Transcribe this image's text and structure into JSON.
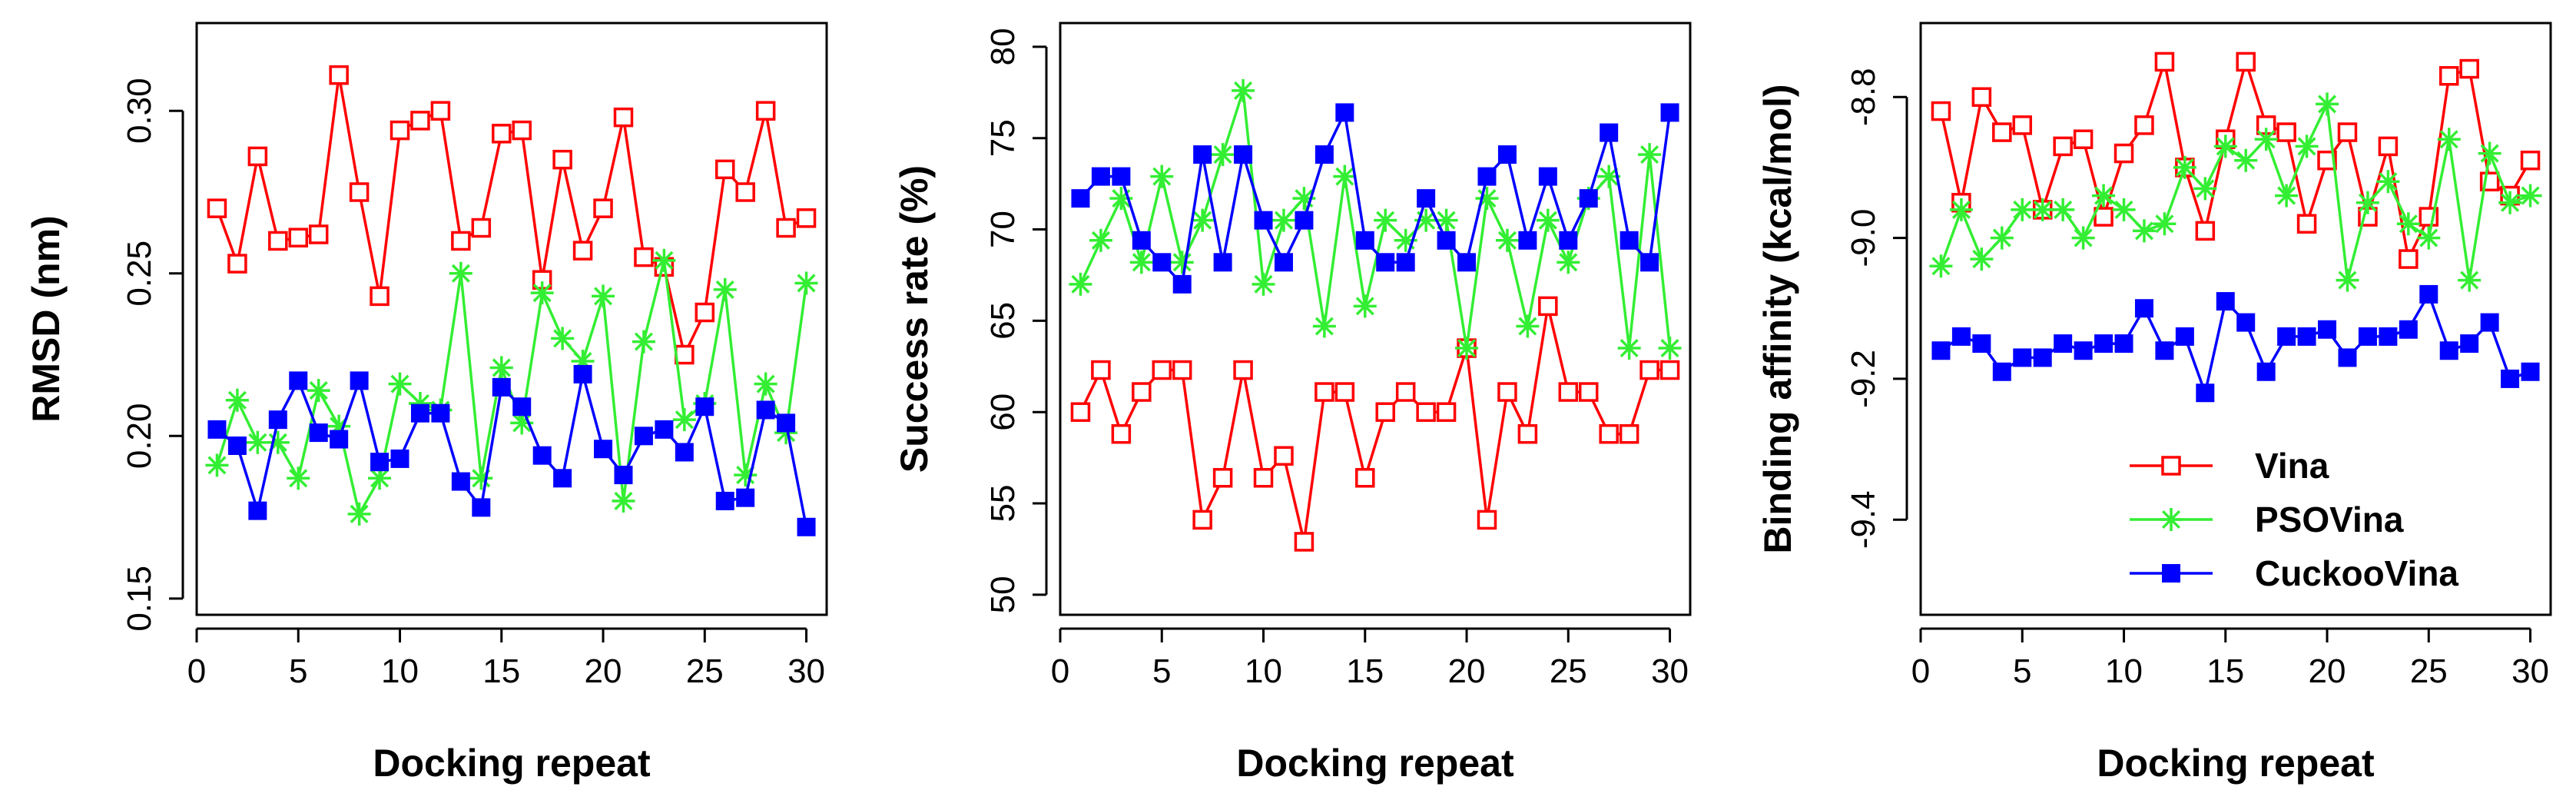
{
  "chart_data": [
    {
      "type": "line",
      "title": "",
      "xlabel": "Docking repeat",
      "ylabel": "RMSD (nm)",
      "xlim": [
        0,
        31
      ],
      "ylim": [
        0.145,
        0.327
      ],
      "xticks": [
        0,
        5,
        10,
        15,
        20,
        25,
        30
      ],
      "yticks": [
        0.15,
        0.2,
        0.25,
        0.3
      ],
      "ytick_labels": [
        "0.15",
        "0.20",
        "0.25",
        "0.30"
      ],
      "legend": false,
      "x": [
        1,
        2,
        3,
        4,
        5,
        6,
        7,
        8,
        9,
        10,
        11,
        12,
        13,
        14,
        15,
        16,
        17,
        18,
        19,
        20,
        21,
        22,
        23,
        24,
        25,
        26,
        27,
        28,
        29,
        30
      ],
      "series": [
        {
          "name": "Vina",
          "color": "#ff0000",
          "marker": "open-square",
          "values": [
            0.27,
            0.253,
            0.286,
            0.26,
            0.261,
            0.262,
            0.311,
            0.275,
            0.243,
            0.294,
            0.297,
            0.3,
            0.26,
            0.264,
            0.293,
            0.294,
            0.248,
            0.285,
            0.257,
            0.27,
            0.298,
            0.255,
            0.252,
            0.225,
            0.238,
            0.282,
            0.275,
            0.3,
            0.264,
            0.267
          ]
        },
        {
          "name": "PSOVina",
          "color": "#33ee33",
          "marker": "asterisk",
          "values": [
            0.191,
            0.211,
            0.198,
            0.198,
            0.187,
            0.214,
            0.203,
            0.176,
            0.187,
            0.216,
            0.21,
            0.208,
            0.25,
            0.187,
            0.221,
            0.204,
            0.244,
            0.23,
            0.223,
            0.243,
            0.18,
            0.229,
            0.254,
            0.205,
            0.21,
            0.245,
            0.188,
            0.216,
            0.201,
            0.247
          ]
        },
        {
          "name": "CuckooVina",
          "color": "#0000ff",
          "marker": "filled-square",
          "values": [
            0.202,
            0.197,
            0.177,
            0.205,
            0.217,
            0.201,
            0.199,
            0.217,
            0.192,
            0.193,
            0.207,
            0.207,
            0.186,
            0.178,
            0.215,
            0.209,
            0.194,
            0.187,
            0.219,
            0.196,
            0.188,
            0.2,
            0.202,
            0.195,
            0.209,
            0.18,
            0.181,
            0.208,
            0.204,
            0.172
          ]
        }
      ]
    },
    {
      "type": "line",
      "title": "",
      "xlabel": "Docking repeat",
      "ylabel": "Success rate (%)",
      "xlim": [
        0,
        31
      ],
      "ylim": [
        48.9,
        81.3
      ],
      "xticks": [
        0,
        5,
        10,
        15,
        20,
        25,
        30
      ],
      "yticks": [
        50,
        55,
        60,
        65,
        70,
        75,
        80
      ],
      "ytick_labels": [
        "50",
        "55",
        "60",
        "65",
        "70",
        "75",
        "80"
      ],
      "legend": false,
      "x": [
        1,
        2,
        3,
        4,
        5,
        6,
        7,
        8,
        9,
        10,
        11,
        12,
        13,
        14,
        15,
        16,
        17,
        18,
        19,
        20,
        21,
        22,
        23,
        24,
        25,
        26,
        27,
        28,
        29,
        30
      ],
      "series": [
        {
          "name": "Vina",
          "color": "#ff0000",
          "marker": "open-square",
          "values": [
            60.0,
            62.3,
            58.8,
            61.1,
            62.3,
            62.3,
            54.1,
            56.4,
            62.3,
            56.4,
            57.6,
            52.9,
            61.1,
            61.1,
            56.4,
            60.0,
            61.1,
            60.0,
            60.0,
            63.5,
            54.1,
            61.1,
            58.8,
            65.8,
            61.1,
            61.1,
            58.8,
            58.8,
            62.3,
            62.3
          ]
        },
        {
          "name": "PSOVina",
          "color": "#33ee33",
          "marker": "asterisk",
          "values": [
            67.0,
            69.4,
            71.7,
            68.2,
            72.9,
            68.2,
            70.5,
            74.1,
            77.6,
            67.0,
            70.5,
            71.7,
            64.7,
            72.9,
            65.8,
            70.5,
            69.4,
            70.5,
            70.5,
            63.5,
            71.7,
            69.4,
            64.7,
            70.5,
            68.2,
            71.7,
            72.9,
            63.5,
            74.1,
            63.5
          ]
        },
        {
          "name": "CuckooVina",
          "color": "#0000ff",
          "marker": "filled-square",
          "values": [
            71.7,
            72.9,
            72.9,
            69.4,
            68.2,
            67.0,
            74.1,
            68.2,
            74.1,
            70.5,
            68.2,
            70.5,
            74.1,
            76.4,
            69.4,
            68.2,
            68.2,
            71.7,
            69.4,
            68.2,
            72.9,
            74.1,
            69.4,
            72.9,
            69.4,
            71.7,
            75.3,
            69.4,
            68.2,
            76.4
          ]
        }
      ]
    },
    {
      "type": "line",
      "title": "",
      "xlabel": "Docking repeat",
      "ylabel": "Binding affinity (kcal/mol)",
      "xlim": [
        0,
        31
      ],
      "ylim": [
        -9.535,
        -8.695
      ],
      "xticks": [
        0,
        5,
        10,
        15,
        20,
        25,
        30
      ],
      "yticks": [
        -9.4,
        -9.2,
        -9.0,
        -8.8
      ],
      "ytick_labels": [
        "-9.4",
        "-9.2",
        "-9.0",
        "-8.8"
      ],
      "legend": true,
      "legend_position": "bottom-right",
      "x": [
        1,
        2,
        3,
        4,
        5,
        6,
        7,
        8,
        9,
        10,
        11,
        12,
        13,
        14,
        15,
        16,
        17,
        18,
        19,
        20,
        21,
        22,
        23,
        24,
        25,
        26,
        27,
        28,
        29,
        30
      ],
      "series": [
        {
          "name": "Vina",
          "color": "#ff0000",
          "marker": "open-square",
          "values": [
            -8.82,
            -8.95,
            -8.8,
            -8.85,
            -8.84,
            -8.96,
            -8.87,
            -8.86,
            -8.97,
            -8.88,
            -8.84,
            -8.75,
            -8.9,
            -8.99,
            -8.86,
            -8.75,
            -8.84,
            -8.85,
            -8.98,
            -8.89,
            -8.85,
            -8.97,
            -8.87,
            -9.03,
            -8.97,
            -8.77,
            -8.76,
            -8.92,
            -8.94,
            -8.89
          ]
        },
        {
          "name": "PSOVina",
          "color": "#33ee33",
          "marker": "asterisk",
          "values": [
            -9.04,
            -8.96,
            -9.03,
            -9.0,
            -8.96,
            -8.96,
            -8.96,
            -9.0,
            -8.94,
            -8.96,
            -8.99,
            -8.98,
            -8.9,
            -8.93,
            -8.87,
            -8.89,
            -8.86,
            -8.94,
            -8.87,
            -8.81,
            -9.06,
            -8.95,
            -8.92,
            -8.98,
            -9.0,
            -8.86,
            -9.06,
            -8.88,
            -8.95,
            -8.94
          ]
        },
        {
          "name": "CuckooVina",
          "color": "#0000ff",
          "marker": "filled-square",
          "values": [
            -9.16,
            -9.14,
            -9.15,
            -9.19,
            -9.17,
            -9.17,
            -9.15,
            -9.16,
            -9.15,
            -9.15,
            -9.1,
            -9.16,
            -9.14,
            -9.22,
            -9.09,
            -9.12,
            -9.19,
            -9.14,
            -9.14,
            -9.13,
            -9.17,
            -9.14,
            -9.14,
            -9.13,
            -9.08,
            -9.16,
            -9.15,
            -9.12,
            -9.2,
            -9.19
          ]
        }
      ]
    }
  ]
}
